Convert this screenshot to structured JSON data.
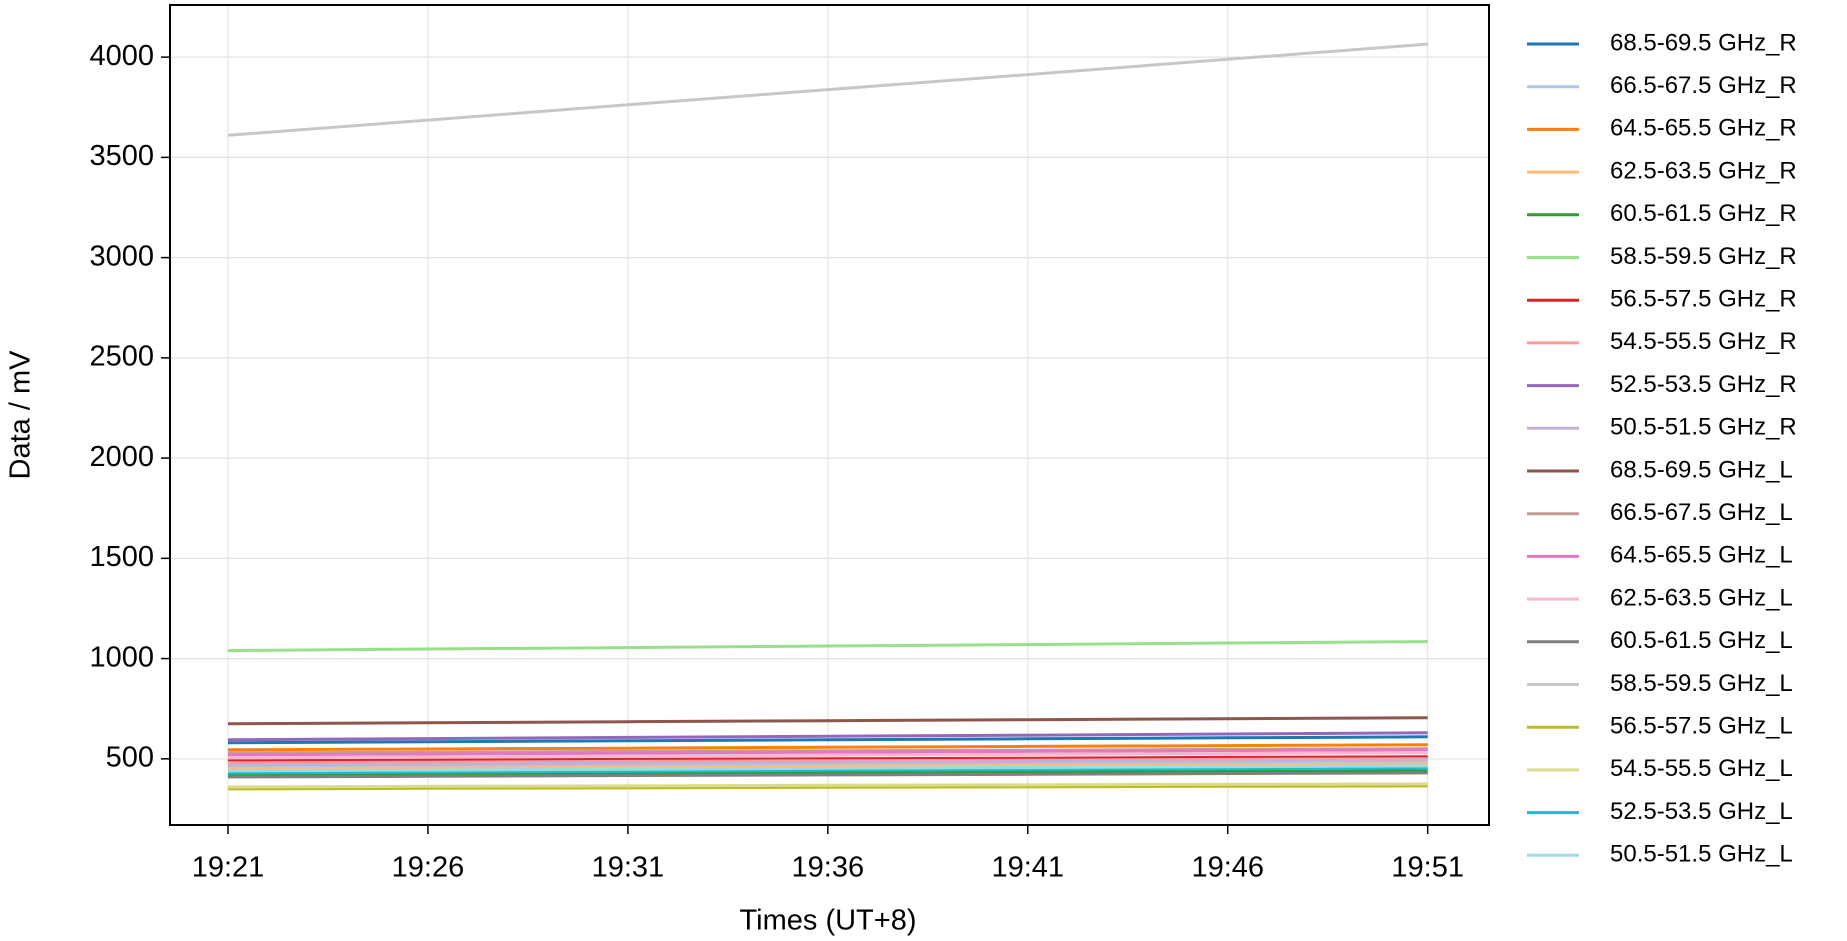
{
  "chart_data": {
    "type": "line",
    "xlabel": "Times (UT+8)",
    "ylabel": "Data / mV",
    "x": [
      "19:21",
      "19:26",
      "19:31",
      "19:36",
      "19:41",
      "19:46",
      "19:51"
    ],
    "xlim": [
      "19:19:33",
      "19:52:32"
    ],
    "xticks": [
      "19:21",
      "19:26",
      "19:31",
      "19:36",
      "19:41",
      "19:46",
      "19:51"
    ],
    "ylim": [
      170,
      4260
    ],
    "yticks": [
      500,
      1000,
      1500,
      2000,
      2500,
      3000,
      3500,
      4000
    ],
    "grid": true,
    "legend": "outside-right",
    "series": [
      {
        "name": "68.5-69.5 GHz_R",
        "color": "#1f77b4",
        "values": [
          580,
          585,
          590,
          595,
          600,
          605,
          610
        ]
      },
      {
        "name": "66.5-67.5 GHz_R",
        "color": "#aec7e8",
        "values": [
          460,
          464,
          468,
          473,
          477,
          481,
          485
        ]
      },
      {
        "name": "64.5-65.5 GHz_R",
        "color": "#ff7f0e",
        "values": [
          545,
          549,
          553,
          558,
          562,
          566,
          570
        ]
      },
      {
        "name": "62.5-63.5 GHz_R",
        "color": "#ffbb78",
        "values": [
          450,
          454,
          458,
          463,
          467,
          471,
          475
        ]
      },
      {
        "name": "60.5-61.5 GHz_R",
        "color": "#2ca02c",
        "values": [
          420,
          423,
          427,
          430,
          433,
          437,
          440
        ]
      },
      {
        "name": "58.5-59.5 GHz_R",
        "color": "#98df8a",
        "values": [
          1040,
          1048,
          1055,
          1063,
          1070,
          1078,
          1085
        ]
      },
      {
        "name": "56.5-57.5 GHz_R",
        "color": "#d62728",
        "values": [
          490,
          493,
          497,
          500,
          503,
          507,
          510
        ]
      },
      {
        "name": "54.5-55.5 GHz_R",
        "color": "#ff9896",
        "values": [
          480,
          483,
          487,
          490,
          493,
          497,
          500
        ]
      },
      {
        "name": "52.5-53.5 GHz_R",
        "color": "#9467bd",
        "values": [
          595,
          601,
          607,
          613,
          618,
          624,
          630
        ]
      },
      {
        "name": "50.5-51.5 GHz_R",
        "color": "#c5b0d5",
        "values": [
          470,
          474,
          478,
          483,
          487,
          491,
          495
        ]
      },
      {
        "name": "68.5-69.5 GHz_L",
        "color": "#8c564b",
        "values": [
          675,
          680,
          685,
          690,
          695,
          700,
          705
        ]
      },
      {
        "name": "66.5-67.5 GHz_L",
        "color": "#c49c94",
        "values": [
          530,
          533,
          537,
          540,
          543,
          547,
          550
        ]
      },
      {
        "name": "64.5-65.5 GHz_L",
        "color": "#e377c2",
        "values": [
          520,
          524,
          528,
          533,
          537,
          541,
          545
        ]
      },
      {
        "name": "62.5-63.5 GHz_L",
        "color": "#f7b6d2",
        "values": [
          505,
          509,
          513,
          518,
          522,
          526,
          530
        ]
      },
      {
        "name": "60.5-61.5 GHz_L",
        "color": "#7f7f7f",
        "values": [
          410,
          413,
          417,
          420,
          423,
          427,
          430
        ]
      },
      {
        "name": "58.5-59.5 GHz_L",
        "color": "#c7c7c7",
        "values": [
          3610,
          3686,
          3762,
          3838,
          3913,
          3989,
          4065
        ]
      },
      {
        "name": "56.5-57.5 GHz_L",
        "color": "#bcbd22",
        "values": [
          350,
          353,
          355,
          358,
          360,
          363,
          365
        ]
      },
      {
        "name": "54.5-55.5 GHz_L",
        "color": "#dbdb8d",
        "values": [
          360,
          363,
          365,
          368,
          370,
          373,
          375
        ]
      },
      {
        "name": "52.5-53.5 GHz_L",
        "color": "#17becf",
        "values": [
          430,
          434,
          438,
          443,
          447,
          451,
          455
        ]
      },
      {
        "name": "50.5-51.5 GHz_L",
        "color": "#9edae5",
        "values": [
          440,
          444,
          448,
          453,
          457,
          461,
          465
        ]
      }
    ]
  }
}
